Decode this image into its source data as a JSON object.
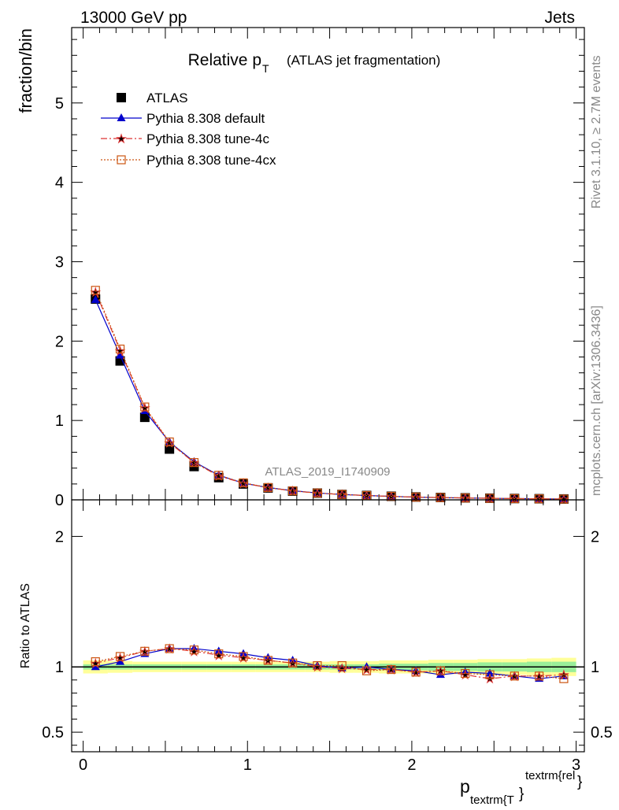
{
  "header": {
    "left": "13000 GeV pp",
    "right": "Jets"
  },
  "side": {
    "rivet": "Rivet 3.1.10, ≥ 2.7M events",
    "mcplots": "mcplots.cern.ch [arXiv:1306.3436]"
  },
  "chart_data": [
    {
      "type": "line",
      "title": "Relative p",
      "title_sub": "T",
      "title_extra": "(ATLAS jet fragmentation)",
      "ylabel": "fraction/bin",
      "watermark": "ATLAS_2019_I1740909",
      "xlim": [
        -0.07,
        3.05
      ],
      "ylim": [
        0,
        5.95
      ],
      "yticks": [
        "0",
        "1",
        "2",
        "3",
        "4",
        "5"
      ],
      "x": [
        0.075,
        0.225,
        0.375,
        0.525,
        0.675,
        0.825,
        0.975,
        1.125,
        1.275,
        1.425,
        1.575,
        1.725,
        1.875,
        2.025,
        2.175,
        2.325,
        2.475,
        2.625,
        2.775,
        2.925
      ],
      "legend": {
        "position": "top-left"
      },
      "series": [
        {
          "name": "ATLAS",
          "color": "#000000",
          "marker": "square",
          "values": [
            2.53,
            1.75,
            1.04,
            0.64,
            0.42,
            0.28,
            0.2,
            0.15,
            0.11,
            0.085,
            0.068,
            0.055,
            0.045,
            0.036,
            0.03,
            0.025,
            0.021,
            0.017,
            0.014,
            0.011
          ]
        },
        {
          "name": "Pythia 8.308 default",
          "color": "#0000cc",
          "marker": "triangle",
          "values": [
            2.52,
            1.82,
            1.12,
            0.73,
            0.48,
            0.31,
            0.21,
            0.155,
            0.115,
            0.086,
            0.067,
            0.055,
            0.044,
            0.035,
            0.028,
            0.024,
            0.02,
            0.016,
            0.013,
            0.01
          ]
        },
        {
          "name": "Pythia 8.308 tune-4c",
          "color": "#dd3333",
          "marker": "star",
          "values": [
            2.62,
            1.88,
            1.16,
            0.72,
            0.47,
            0.3,
            0.21,
            0.155,
            0.113,
            0.085,
            0.067,
            0.055,
            0.044,
            0.035,
            0.029,
            0.024,
            0.019,
            0.016,
            0.013,
            0.01
          ]
        },
        {
          "name": "Pythia 8.308 tune-4cx",
          "color": "#cc5511",
          "marker": "open-square",
          "values": [
            2.64,
            1.9,
            1.17,
            0.73,
            0.47,
            0.31,
            0.215,
            0.155,
            0.113,
            0.086,
            0.068,
            0.054,
            0.044,
            0.035,
            0.029,
            0.024,
            0.02,
            0.016,
            0.013,
            0.01
          ]
        }
      ]
    },
    {
      "type": "line",
      "ylabel": "Ratio to ATLAS",
      "xlabel": "p",
      "xlabel_sub": "textrm{T",
      "xlabel_sup": "textrm{rel",
      "xlabel_brace": "}",
      "xlim": [
        -0.07,
        3.05
      ],
      "ylim": [
        0.35,
        2.28
      ],
      "yticks": [
        "0.5",
        "1",
        "2"
      ],
      "xticks": [
        "0",
        "1",
        "2",
        "3"
      ],
      "band_inner": [
        0.02,
        0.02,
        0.02,
        0.02,
        0.02,
        0.02,
        0.02,
        0.02,
        0.02,
        0.02,
        0.02,
        0.02,
        0.025,
        0.025,
        0.03,
        0.03,
        0.035,
        0.035,
        0.04,
        0.04
      ],
      "band_outer": [
        0.05,
        0.045,
        0.04,
        0.04,
        0.04,
        0.04,
        0.04,
        0.04,
        0.04,
        0.04,
        0.045,
        0.045,
        0.05,
        0.05,
        0.055,
        0.055,
        0.06,
        0.06,
        0.065,
        0.07
      ],
      "series": [
        {
          "name": "Pythia 8.308 default",
          "color": "#0000cc",
          "marker": "triangle",
          "values": [
            1.0,
            1.04,
            1.1,
            1.14,
            1.14,
            1.12,
            1.1,
            1.07,
            1.05,
            1.01,
            0.99,
            1.0,
            0.98,
            0.97,
            0.94,
            0.96,
            0.95,
            0.93,
            0.91,
            0.93
          ]
        },
        {
          "name": "Pythia 8.308 tune-4c",
          "color": "#dd3333",
          "marker": "star",
          "values": [
            1.03,
            1.07,
            1.12,
            1.14,
            1.12,
            1.09,
            1.07,
            1.05,
            1.03,
            1.0,
            0.99,
            0.98,
            0.98,
            0.96,
            0.97,
            0.94,
            0.91,
            0.93,
            0.93,
            0.94
          ]
        },
        {
          "name": "Pythia 8.308 tune-4cx",
          "color": "#cc5511",
          "marker": "open-square",
          "values": [
            1.04,
            1.08,
            1.12,
            1.14,
            1.13,
            1.1,
            1.08,
            1.05,
            1.03,
            1.01,
            1.01,
            0.97,
            0.98,
            0.96,
            0.97,
            0.95,
            0.94,
            0.93,
            0.93,
            0.91
          ]
        }
      ]
    }
  ]
}
